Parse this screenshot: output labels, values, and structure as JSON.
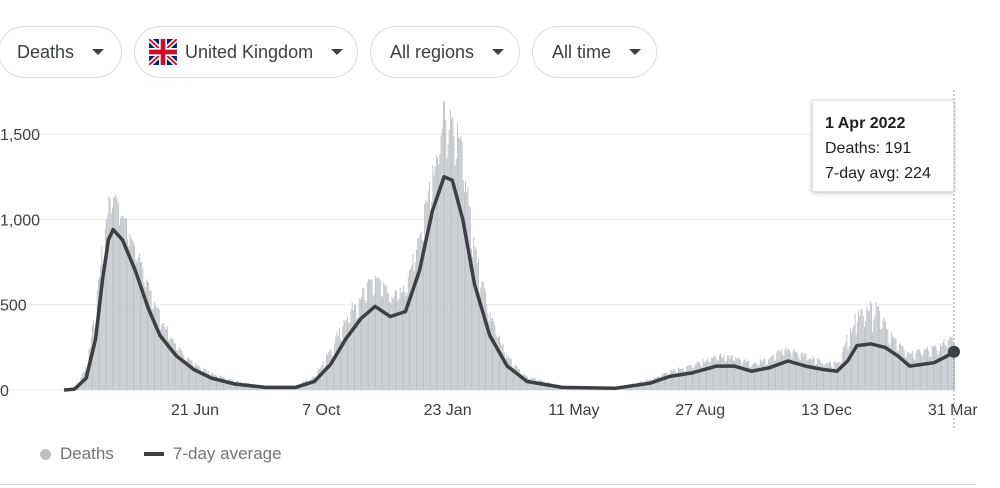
{
  "filters": {
    "metric": "Deaths",
    "country": "United Kingdom",
    "region": "All regions",
    "period": "All time"
  },
  "tooltip": {
    "date": "1 Apr 2022",
    "deaths_label": "Deaths: 191",
    "avg_label": "7-day avg: 224"
  },
  "legend": {
    "bars": "Deaths",
    "line": "7-day average"
  },
  "colors": {
    "bars": "#bdc1c6",
    "line": "#3c4043",
    "grid": "#e8eaed",
    "flag_blue": "#012169",
    "flag_red": "#C8102E"
  },
  "chart_data": {
    "type": "bar",
    "title": "",
    "xlabel": "",
    "ylabel": "",
    "ylim": [
      0,
      1700
    ],
    "y_ticks": [
      0,
      500,
      1000,
      1500
    ],
    "y_tick_labels": [
      "0",
      "500",
      "1,000",
      "1,500"
    ],
    "x_ticks": [
      "2020-06-21",
      "2020-10-07",
      "2021-01-23",
      "2021-05-11",
      "2021-08-27",
      "2021-12-13",
      "2022-03-31"
    ],
    "x_tick_labels": [
      "21 Jun",
      "7 Oct",
      "23 Jan",
      "11 May",
      "27 Aug",
      "13 Dec",
      "31 Mar"
    ],
    "x_range": [
      "2020-03-01",
      "2022-04-01"
    ],
    "grid": true,
    "legend_position": "bottom-left",
    "avg_points": [
      [
        "2020-03-01",
        0
      ],
      [
        "2020-03-10",
        5
      ],
      [
        "2020-03-20",
        70
      ],
      [
        "2020-03-28",
        300
      ],
      [
        "2020-04-03",
        650
      ],
      [
        "2020-04-08",
        880
      ],
      [
        "2020-04-12",
        940
      ],
      [
        "2020-04-20",
        880
      ],
      [
        "2020-05-01",
        700
      ],
      [
        "2020-05-12",
        480
      ],
      [
        "2020-05-22",
        320
      ],
      [
        "2020-06-05",
        200
      ],
      [
        "2020-06-20",
        120
      ],
      [
        "2020-07-05",
        70
      ],
      [
        "2020-07-25",
        35
      ],
      [
        "2020-08-20",
        15
      ],
      [
        "2020-09-15",
        15
      ],
      [
        "2020-10-01",
        50
      ],
      [
        "2020-10-15",
        150
      ],
      [
        "2020-10-28",
        300
      ],
      [
        "2020-11-10",
        420
      ],
      [
        "2020-11-22",
        490
      ],
      [
        "2020-12-05",
        430
      ],
      [
        "2020-12-18",
        460
      ],
      [
        "2020-12-30",
        700
      ],
      [
        "2021-01-10",
        1050
      ],
      [
        "2021-01-20",
        1250
      ],
      [
        "2021-01-27",
        1230
      ],
      [
        "2021-02-05",
        1000
      ],
      [
        "2021-02-15",
        620
      ],
      [
        "2021-02-28",
        320
      ],
      [
        "2021-03-15",
        140
      ],
      [
        "2021-04-01",
        50
      ],
      [
        "2021-05-01",
        15
      ],
      [
        "2021-06-15",
        10
      ],
      [
        "2021-07-15",
        40
      ],
      [
        "2021-08-01",
        80
      ],
      [
        "2021-08-20",
        100
      ],
      [
        "2021-09-10",
        140
      ],
      [
        "2021-09-25",
        140
      ],
      [
        "2021-10-10",
        110
      ],
      [
        "2021-10-25",
        130
      ],
      [
        "2021-11-10",
        170
      ],
      [
        "2021-11-25",
        140
      ],
      [
        "2021-12-10",
        120
      ],
      [
        "2021-12-22",
        110
      ],
      [
        "2021-12-31",
        170
      ],
      [
        "2022-01-08",
        260
      ],
      [
        "2022-01-20",
        270
      ],
      [
        "2022-02-01",
        250
      ],
      [
        "2022-02-12",
        200
      ],
      [
        "2022-02-22",
        140
      ],
      [
        "2022-03-05",
        150
      ],
      [
        "2022-03-15",
        160
      ],
      [
        "2022-03-25",
        195
      ],
      [
        "2022-04-01",
        224
      ]
    ],
    "bar_envelope": [
      [
        "2020-03-01",
        0
      ],
      [
        "2020-03-10",
        10
      ],
      [
        "2020-03-20",
        150
      ],
      [
        "2020-03-28",
        500
      ],
      [
        "2020-04-03",
        900
      ],
      [
        "2020-04-08",
        1120
      ],
      [
        "2020-04-12",
        1200
      ],
      [
        "2020-04-20",
        1050
      ],
      [
        "2020-05-01",
        850
      ],
      [
        "2020-05-12",
        620
      ],
      [
        "2020-05-22",
        450
      ],
      [
        "2020-06-05",
        260
      ],
      [
        "2020-06-20",
        160
      ],
      [
        "2020-07-05",
        100
      ],
      [
        "2020-07-25",
        55
      ],
      [
        "2020-08-20",
        25
      ],
      [
        "2020-09-15",
        25
      ],
      [
        "2020-10-01",
        90
      ],
      [
        "2020-10-15",
        250
      ],
      [
        "2020-10-28",
        450
      ],
      [
        "2020-11-10",
        580
      ],
      [
        "2020-11-22",
        690
      ],
      [
        "2020-12-05",
        560
      ],
      [
        "2020-12-18",
        620
      ],
      [
        "2020-12-30",
        950
      ],
      [
        "2021-01-10",
        1300
      ],
      [
        "2021-01-20",
        1700
      ],
      [
        "2021-01-27",
        1600
      ],
      [
        "2021-02-05",
        1450
      ],
      [
        "2021-02-15",
        850
      ],
      [
        "2021-02-28",
        450
      ],
      [
        "2021-03-15",
        200
      ],
      [
        "2021-04-01",
        80
      ],
      [
        "2021-05-01",
        25
      ],
      [
        "2021-06-15",
        15
      ],
      [
        "2021-07-15",
        65
      ],
      [
        "2021-08-01",
        120
      ],
      [
        "2021-08-20",
        150
      ],
      [
        "2021-09-10",
        210
      ],
      [
        "2021-09-25",
        200
      ],
      [
        "2021-10-10",
        160
      ],
      [
        "2021-10-25",
        200
      ],
      [
        "2021-11-10",
        260
      ],
      [
        "2021-11-25",
        210
      ],
      [
        "2021-12-10",
        170
      ],
      [
        "2021-12-22",
        160
      ],
      [
        "2021-12-31",
        330
      ],
      [
        "2022-01-08",
        480
      ],
      [
        "2022-01-20",
        540
      ],
      [
        "2022-02-01",
        420
      ],
      [
        "2022-02-12",
        280
      ],
      [
        "2022-02-22",
        220
      ],
      [
        "2022-03-05",
        240
      ],
      [
        "2022-03-15",
        260
      ],
      [
        "2022-03-25",
        300
      ],
      [
        "2022-04-01",
        310
      ]
    ],
    "series": [
      {
        "name": "Deaths"
      },
      {
        "name": "7-day average"
      }
    ]
  }
}
